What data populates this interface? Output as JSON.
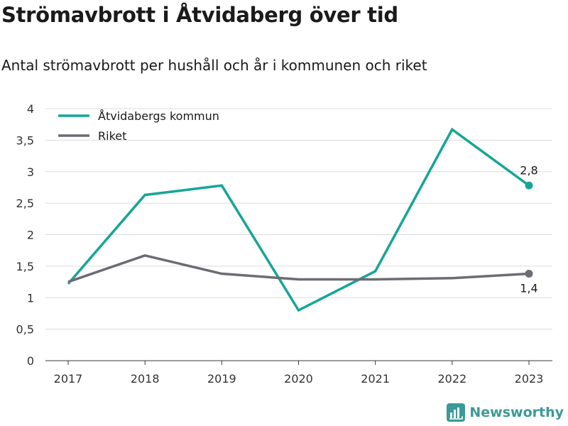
{
  "title": "Strömavbrott i Åtvidaberg över tid",
  "subtitle": "Antal strömavbrott per hushåll och år i kommunen och riket",
  "brand": {
    "name": "Newsworthy",
    "icon": "newsworthy-logo-icon",
    "color": "#3b9a97"
  },
  "chart_data": {
    "type": "line",
    "title": "Strömavbrott i Åtvidaberg över tid",
    "subtitle": "Antal strömavbrott per hushåll och år i kommunen och riket",
    "xlabel": "",
    "ylabel": "",
    "x": [
      "2017",
      "2018",
      "2019",
      "2020",
      "2021",
      "2022",
      "2023"
    ],
    "ylim": [
      0,
      4
    ],
    "yticks": [
      "0",
      "0,5",
      "1",
      "1,5",
      "2",
      "2,5",
      "3",
      "3,5",
      "4"
    ],
    "grid": true,
    "legend": "top-left",
    "series": [
      {
        "name": "Åtvidabergs kommun",
        "color": "#16a596",
        "values": [
          1.22,
          2.63,
          2.78,
          0.8,
          1.42,
          3.67,
          2.78
        ],
        "end_label": "2,8"
      },
      {
        "name": "Riket",
        "color": "#6d6c72",
        "values": [
          1.25,
          1.67,
          1.38,
          1.29,
          1.29,
          1.31,
          1.38
        ],
        "end_label": "1,4"
      }
    ]
  }
}
